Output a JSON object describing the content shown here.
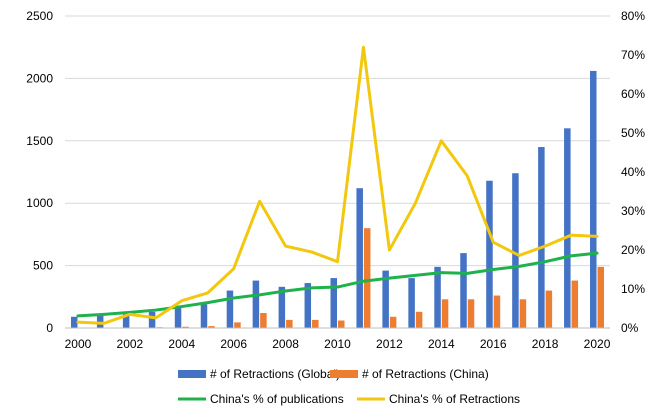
{
  "chart_data": {
    "type": "bar",
    "categories": [
      "2000",
      "2001",
      "2002",
      "2003",
      "2004",
      "2005",
      "2006",
      "2007",
      "2008",
      "2009",
      "2010",
      "2011",
      "2012",
      "2013",
      "2014",
      "2015",
      "2016",
      "2017",
      "2018",
      "2019",
      "2020"
    ],
    "x_tick_labels": [
      "2000",
      "2002",
      "2004",
      "2006",
      "2008",
      "2010",
      "2012",
      "2014",
      "2016",
      "2018",
      "2020"
    ],
    "y_left": {
      "ylim": [
        0,
        2500
      ],
      "ticks": [
        "0",
        "500",
        "1000",
        "1500",
        "2000",
        "2500"
      ]
    },
    "y_right": {
      "ylim": [
        0,
        0.8
      ],
      "ticks": [
        "0%",
        "10%",
        "20%",
        "30%",
        "40%",
        "50%",
        "60%",
        "70%",
        "80%"
      ]
    },
    "grid": "horizontal",
    "legend_position": "bottom",
    "series": [
      {
        "name": "# of Retractions (Global)",
        "type": "bar",
        "axis": "left",
        "color": "#4472c4",
        "values": [
          90,
          100,
          110,
          130,
          160,
          190,
          300,
          380,
          330,
          360,
          400,
          1120,
          460,
          400,
          490,
          600,
          1180,
          1240,
          1450,
          1600,
          2060
        ]
      },
      {
        "name": "# of Retractions (China)",
        "type": "bar",
        "axis": "left",
        "color": "#ed7d31",
        "values": [
          2,
          3,
          4,
          6,
          10,
          15,
          45,
          120,
          65,
          65,
          60,
          800,
          90,
          130,
          230,
          230,
          260,
          230,
          300,
          380,
          490
        ]
      },
      {
        "name": "China's % of publications",
        "type": "line",
        "axis": "right",
        "color": "#1fb14c",
        "values": [
          0.031,
          0.035,
          0.04,
          0.046,
          0.055,
          0.065,
          0.077,
          0.085,
          0.095,
          0.103,
          0.105,
          0.12,
          0.128,
          0.135,
          0.142,
          0.14,
          0.15,
          0.158,
          0.17,
          0.185,
          0.192
        ]
      },
      {
        "name": "China's % of Retractions",
        "type": "line",
        "axis": "right",
        "color": "#f2c80f",
        "values": [
          0.015,
          0.012,
          0.035,
          0.026,
          0.07,
          0.09,
          0.152,
          0.325,
          0.21,
          0.195,
          0.17,
          0.72,
          0.2,
          0.32,
          0.48,
          0.39,
          0.22,
          0.186,
          0.21,
          0.238,
          0.235
        ]
      }
    ]
  }
}
